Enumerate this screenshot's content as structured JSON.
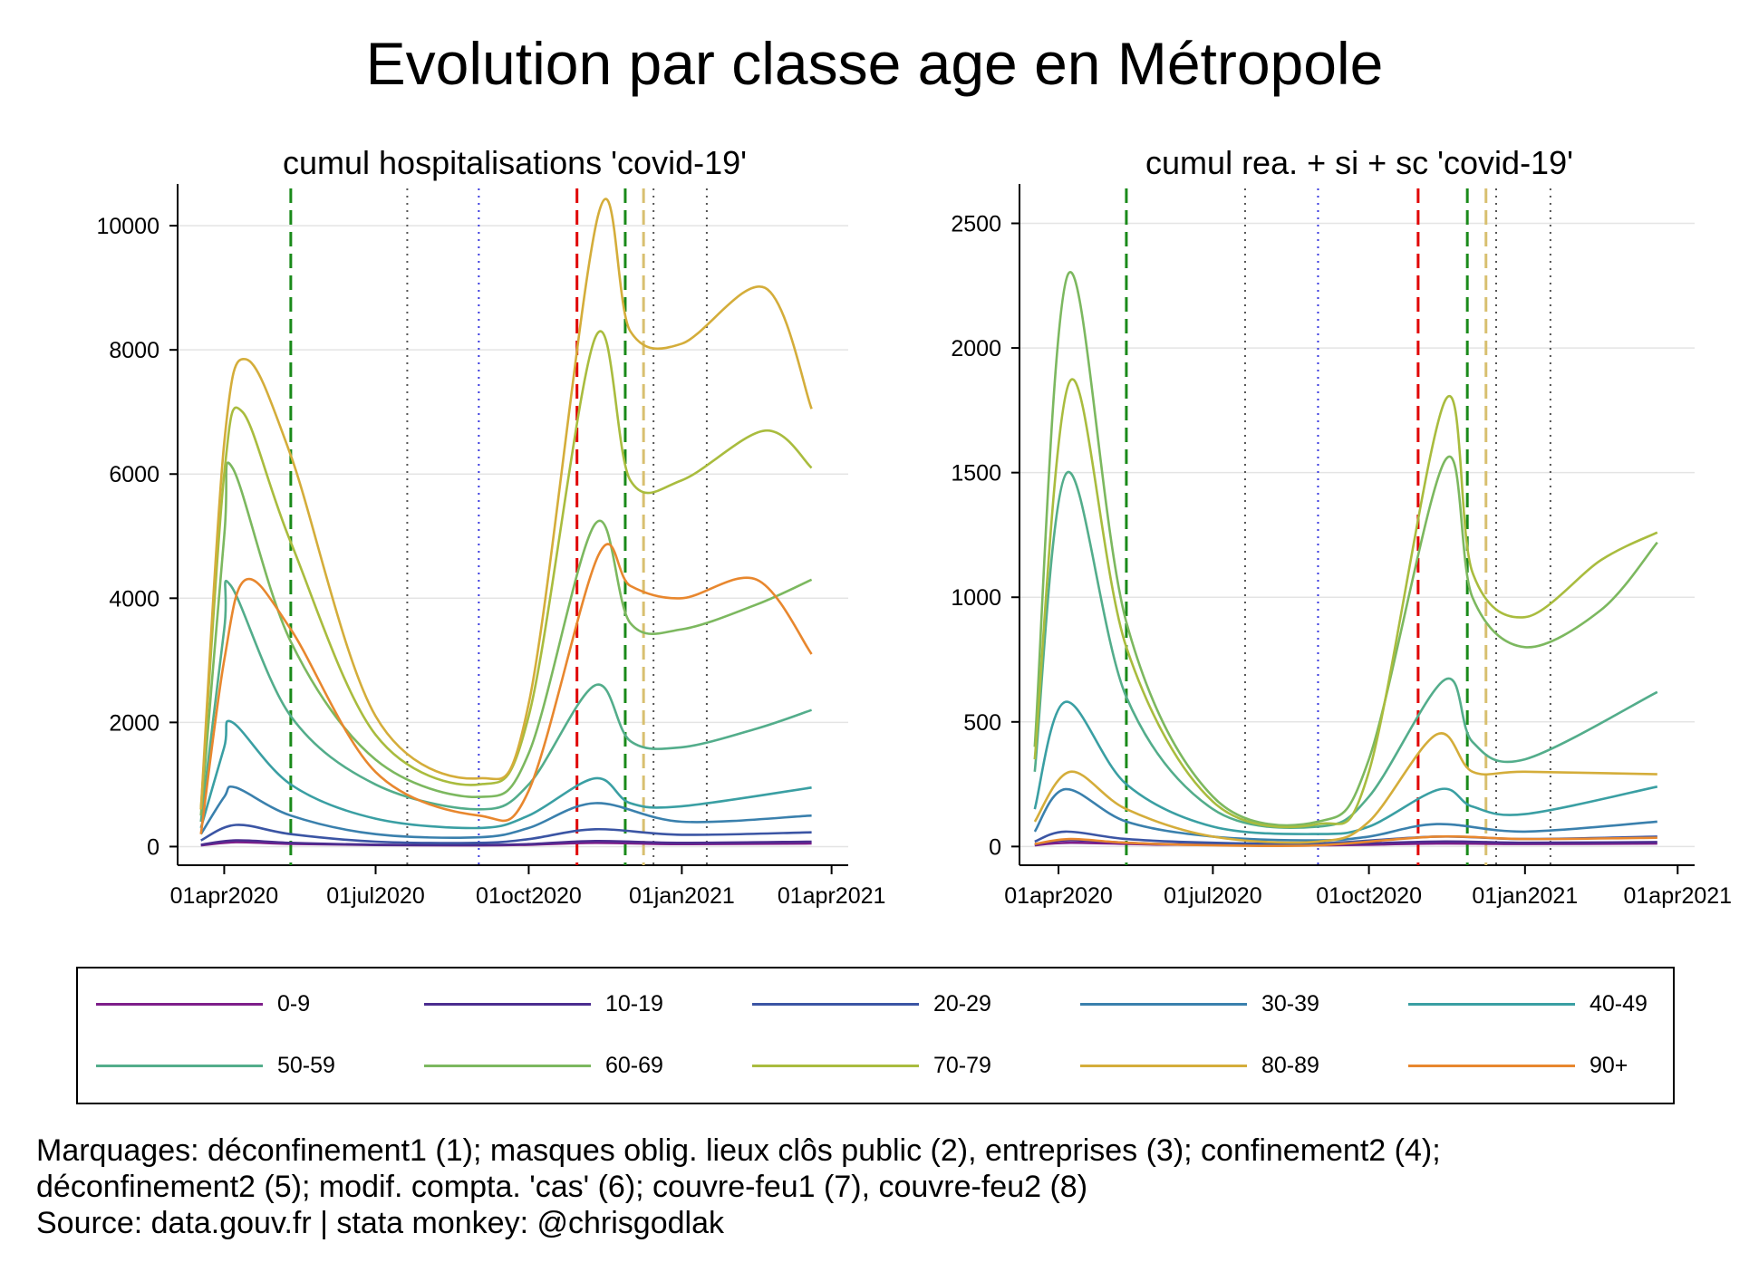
{
  "title": "Evolution par classe age en Métropole",
  "x_ticks": [
    "01apr2020",
    "01jul2020",
    "01oct2020",
    "01jan2021",
    "01apr2021"
  ],
  "legend": [
    {
      "label": "0-9",
      "color": "#7e1e8a"
    },
    {
      "label": "10-19",
      "color": "#4b2d8f"
    },
    {
      "label": "20-29",
      "color": "#3b55a4"
    },
    {
      "label": "30-39",
      "color": "#3a80ad"
    },
    {
      "label": "40-49",
      "color": "#3a9fa3"
    },
    {
      "label": "50-59",
      "color": "#53ad8b"
    },
    {
      "label": "60-69",
      "color": "#7cb85f"
    },
    {
      "label": "70-79",
      "color": "#a9bc3e"
    },
    {
      "label": "80-89",
      "color": "#d4ad3a"
    },
    {
      "label": "90+",
      "color": "#e8872e"
    }
  ],
  "notes": {
    "line1": "Marquages: déconfinement1 (1); masques oblig. lieux clôs public (2), entreprises (3); confinement2 (4);",
    "line2": "déconfinement2 (5); modif. compta. 'cas' (6); couvre-feu1 (7), couvre-feu2 (8)",
    "line3": "Source: data.gouv.fr | stata monkey: @chrisgodlak"
  },
  "chart_data": [
    {
      "type": "line",
      "title": "cumul hospitalisations 'covid-19'",
      "xlim": [
        "2020-03-04",
        "2021-04-11"
      ],
      "ylim": [
        -300,
        10600
      ],
      "y_ticks": [
        0,
        2000,
        4000,
        6000,
        8000,
        10000
      ],
      "x_tick_dates": [
        "2020-04-01",
        "2020-07-01",
        "2020-10-01",
        "2021-01-01",
        "2021-04-01"
      ],
      "markers": [
        {
          "date": "2020-05-11",
          "color": "#1a8a1a",
          "style": "dashed"
        },
        {
          "date": "2020-07-20",
          "color": "#555555",
          "style": "dotted"
        },
        {
          "date": "2020-09-01",
          "color": "#3a3adf",
          "style": "dotted"
        },
        {
          "date": "2020-10-30",
          "color": "#e00000",
          "style": "dashed"
        },
        {
          "date": "2020-11-28",
          "color": "#1a8a1a",
          "style": "dashed"
        },
        {
          "date": "2020-12-09",
          "color": "#d8c070",
          "style": "dashed"
        },
        {
          "date": "2020-12-15",
          "color": "#555555",
          "style": "dotted"
        },
        {
          "date": "2021-01-16",
          "color": "#555555",
          "style": "dotted"
        }
      ],
      "series": [
        {
          "name": "0-9",
          "color": "#7e1e8a",
          "x": [
            "2020-03-18",
            "2020-04-08",
            "2020-05-11",
            "2020-07-01",
            "2020-09-01",
            "2020-10-01",
            "2020-11-10",
            "2021-01-01",
            "2021-03-20"
          ],
          "y": [
            20,
            70,
            45,
            25,
            20,
            30,
            60,
            40,
            50
          ]
        },
        {
          "name": "10-19",
          "color": "#4b2d8f",
          "x": [
            "2020-03-18",
            "2020-04-08",
            "2020-05-11",
            "2020-07-01",
            "2020-09-01",
            "2020-10-01",
            "2020-11-10",
            "2021-01-01",
            "2021-03-20"
          ],
          "y": [
            30,
            100,
            60,
            30,
            25,
            40,
            90,
            60,
            80
          ]
        },
        {
          "name": "20-29",
          "color": "#3b55a4",
          "x": [
            "2020-03-18",
            "2020-04-08",
            "2020-05-11",
            "2020-07-01",
            "2020-09-01",
            "2020-10-01",
            "2020-11-10",
            "2021-01-01",
            "2021-03-20"
          ],
          "y": [
            100,
            350,
            200,
            80,
            60,
            120,
            280,
            190,
            230
          ]
        },
        {
          "name": "30-39",
          "color": "#3a80ad",
          "x": [
            "2020-03-18",
            "2020-04-01",
            "2020-04-08",
            "2020-05-11",
            "2020-07-01",
            "2020-09-01",
            "2020-10-01",
            "2020-11-10",
            "2021-01-01",
            "2021-03-20"
          ],
          "y": [
            200,
            800,
            950,
            500,
            200,
            150,
            300,
            700,
            400,
            500
          ]
        },
        {
          "name": "40-49",
          "color": "#3a9fa3",
          "x": [
            "2020-03-18",
            "2020-04-01",
            "2020-04-06",
            "2020-05-11",
            "2020-07-01",
            "2020-09-01",
            "2020-10-01",
            "2020-11-10",
            "2020-12-01",
            "2021-01-01",
            "2021-03-20"
          ],
          "y": [
            300,
            1600,
            2000,
            1000,
            450,
            300,
            500,
            1100,
            700,
            650,
            950
          ]
        },
        {
          "name": "50-59",
          "color": "#53ad8b",
          "x": [
            "2020-03-18",
            "2020-04-01",
            "2020-04-05",
            "2020-05-11",
            "2020-07-01",
            "2020-09-01",
            "2020-10-01",
            "2020-11-10",
            "2020-12-01",
            "2021-01-01",
            "2021-02-15",
            "2021-03-20"
          ],
          "y": [
            400,
            3500,
            4200,
            2100,
            1000,
            600,
            1000,
            2600,
            1700,
            1600,
            1900,
            2200
          ]
        },
        {
          "name": "60-69",
          "color": "#7cb85f",
          "x": [
            "2020-03-18",
            "2020-04-01",
            "2020-04-06",
            "2020-05-11",
            "2020-07-01",
            "2020-09-01",
            "2020-10-01",
            "2020-11-10",
            "2020-12-01",
            "2021-01-01",
            "2021-02-15",
            "2021-03-20"
          ],
          "y": [
            500,
            5000,
            6100,
            3300,
            1400,
            800,
            1500,
            5200,
            3600,
            3500,
            3900,
            4300
          ]
        },
        {
          "name": "70-79",
          "color": "#a9bc3e",
          "x": [
            "2020-03-18",
            "2020-04-01",
            "2020-04-12",
            "2020-05-11",
            "2020-07-01",
            "2020-09-01",
            "2020-10-01",
            "2020-11-10",
            "2020-12-01",
            "2021-01-01",
            "2021-02-20",
            "2021-03-20"
          ],
          "y": [
            600,
            6000,
            7000,
            4900,
            1800,
            1000,
            2100,
            8200,
            5900,
            5900,
            6700,
            6100
          ]
        },
        {
          "name": "80-89",
          "color": "#d4ad3a",
          "x": [
            "2020-03-18",
            "2020-04-01",
            "2020-04-14",
            "2020-05-11",
            "2020-07-01",
            "2020-09-01",
            "2020-10-01",
            "2020-11-12",
            "2020-12-01",
            "2021-01-01",
            "2021-02-20",
            "2021-03-20"
          ],
          "y": [
            600,
            6500,
            7850,
            6300,
            2100,
            1100,
            2300,
            10200,
            8300,
            8100,
            9000,
            7050
          ]
        },
        {
          "name": "90+",
          "color": "#e8872e",
          "x": [
            "2020-03-18",
            "2020-04-01",
            "2020-04-14",
            "2020-05-11",
            "2020-07-01",
            "2020-09-01",
            "2020-10-01",
            "2020-11-12",
            "2020-12-01",
            "2021-01-01",
            "2021-02-15",
            "2021-03-20"
          ],
          "y": [
            200,
            3000,
            4300,
            3500,
            1200,
            500,
            900,
            4700,
            4200,
            4000,
            4300,
            3100
          ]
        }
      ]
    },
    {
      "type": "line",
      "title": "cumul rea. + si + sc 'covid-19'",
      "xlim": [
        "2020-03-09",
        "2021-04-11"
      ],
      "ylim": [
        -75,
        2640
      ],
      "y_ticks": [
        0,
        500,
        1000,
        1500,
        2000,
        2500
      ],
      "x_tick_dates": [
        "2020-04-01",
        "2020-07-01",
        "2020-10-01",
        "2021-01-01",
        "2021-04-01"
      ],
      "markers": [
        {
          "date": "2020-05-11",
          "color": "#1a8a1a",
          "style": "dashed"
        },
        {
          "date": "2020-07-20",
          "color": "#555555",
          "style": "dotted"
        },
        {
          "date": "2020-09-01",
          "color": "#3a3adf",
          "style": "dotted"
        },
        {
          "date": "2020-10-30",
          "color": "#e00000",
          "style": "dashed"
        },
        {
          "date": "2020-11-28",
          "color": "#1a8a1a",
          "style": "dashed"
        },
        {
          "date": "2020-12-09",
          "color": "#d8c070",
          "style": "dashed"
        },
        {
          "date": "2020-12-15",
          "color": "#555555",
          "style": "dotted"
        },
        {
          "date": "2021-01-16",
          "color": "#555555",
          "style": "dotted"
        }
      ],
      "series": [
        {
          "name": "0-9",
          "color": "#7e1e8a",
          "x": [
            "2020-03-18",
            "2020-04-08",
            "2020-06-01",
            "2020-09-01",
            "2020-11-10",
            "2021-01-01",
            "2021-03-20"
          ],
          "y": [
            5,
            15,
            8,
            5,
            12,
            10,
            12
          ]
        },
        {
          "name": "10-19",
          "color": "#4b2d8f",
          "x": [
            "2020-03-18",
            "2020-04-08",
            "2020-06-01",
            "2020-09-01",
            "2020-11-10",
            "2021-01-01",
            "2021-03-20"
          ],
          "y": [
            8,
            25,
            10,
            8,
            20,
            15,
            18
          ]
        },
        {
          "name": "20-29",
          "color": "#3b55a4",
          "x": [
            "2020-03-18",
            "2020-04-05",
            "2020-05-11",
            "2020-07-01",
            "2020-09-01",
            "2020-11-10",
            "2021-01-01",
            "2021-03-20"
          ],
          "y": [
            20,
            60,
            30,
            15,
            12,
            40,
            30,
            40
          ]
        },
        {
          "name": "30-39",
          "color": "#3a80ad",
          "x": [
            "2020-03-18",
            "2020-04-05",
            "2020-05-11",
            "2020-07-01",
            "2020-09-01",
            "2020-10-01",
            "2020-11-10",
            "2021-01-01",
            "2021-03-20"
          ],
          "y": [
            60,
            230,
            100,
            40,
            25,
            40,
            90,
            60,
            100
          ]
        },
        {
          "name": "40-49",
          "color": "#3a9fa3",
          "x": [
            "2020-03-18",
            "2020-04-05",
            "2020-05-11",
            "2020-07-01",
            "2020-09-01",
            "2020-10-01",
            "2020-11-12",
            "2020-12-01",
            "2021-01-01",
            "2021-03-20"
          ],
          "y": [
            150,
            580,
            250,
            80,
            50,
            80,
            230,
            160,
            130,
            240
          ]
        },
        {
          "name": "50-59",
          "color": "#53ad8b",
          "x": [
            "2020-03-18",
            "2020-04-06",
            "2020-05-11",
            "2020-07-01",
            "2020-09-01",
            "2020-10-01",
            "2020-11-15",
            "2020-12-01",
            "2021-01-01",
            "2021-03-20"
          ],
          "y": [
            300,
            1500,
            600,
            150,
            80,
            200,
            670,
            420,
            350,
            620
          ]
        },
        {
          "name": "60-69",
          "color": "#7cb85f",
          "x": [
            "2020-03-18",
            "2020-04-07",
            "2020-05-11",
            "2020-07-01",
            "2020-09-01",
            "2020-10-01",
            "2020-11-15",
            "2020-12-01",
            "2021-01-01",
            "2021-02-15",
            "2021-03-20"
          ],
          "y": [
            400,
            2300,
            900,
            200,
            100,
            350,
            1550,
            1000,
            800,
            950,
            1220
          ]
        },
        {
          "name": "70-79",
          "color": "#a9bc3e",
          "x": [
            "2020-03-18",
            "2020-04-08",
            "2020-05-11",
            "2020-07-01",
            "2020-09-01",
            "2020-10-01",
            "2020-11-15",
            "2020-12-01",
            "2021-01-01",
            "2021-02-15",
            "2021-03-20"
          ],
          "y": [
            350,
            1870,
            800,
            180,
            90,
            300,
            1790,
            1100,
            920,
            1150,
            1260
          ]
        },
        {
          "name": "80-89",
          "color": "#d4ad3a",
          "x": [
            "2020-03-18",
            "2020-04-08",
            "2020-05-11",
            "2020-07-01",
            "2020-09-01",
            "2020-10-01",
            "2020-11-10",
            "2020-12-01",
            "2021-01-01",
            "2021-03-20"
          ],
          "y": [
            100,
            300,
            150,
            40,
            20,
            100,
            450,
            300,
            300,
            290
          ]
        },
        {
          "name": "90+",
          "color": "#e8872e",
          "x": [
            "2020-03-18",
            "2020-04-08",
            "2020-05-11",
            "2020-07-01",
            "2020-09-01",
            "2020-11-10",
            "2021-01-01",
            "2021-03-20"
          ],
          "y": [
            10,
            30,
            15,
            5,
            5,
            40,
            30,
            35
          ]
        }
      ]
    }
  ]
}
